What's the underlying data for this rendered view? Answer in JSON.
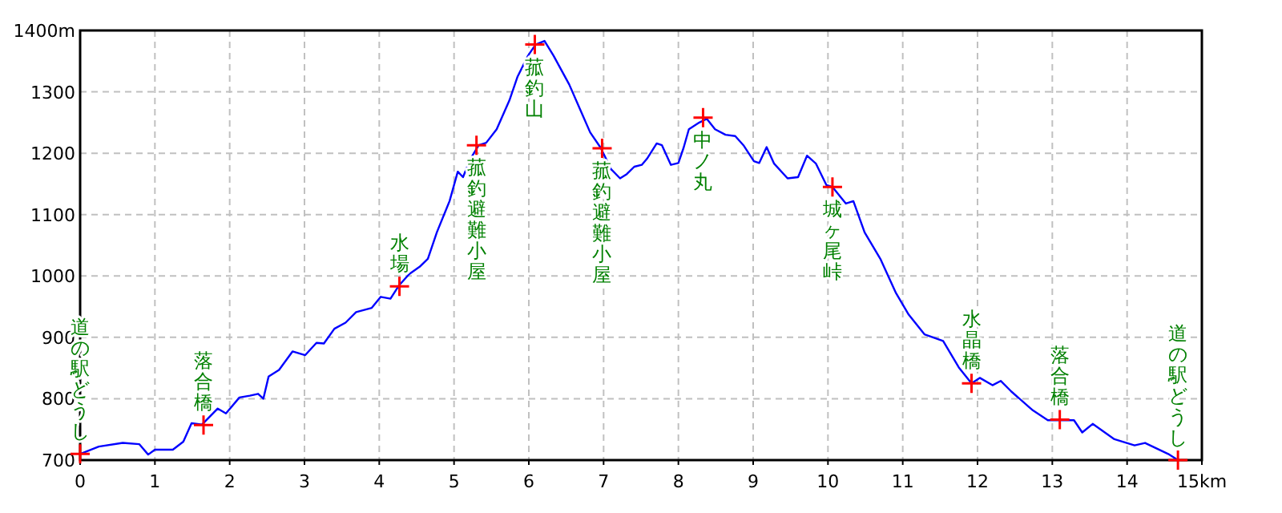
{
  "chart_data": {
    "type": "line",
    "xlim": [
      0,
      15
    ],
    "ylim": [
      700,
      1400
    ],
    "xticks": [
      0,
      1,
      2,
      3,
      4,
      5,
      6,
      7,
      8,
      9,
      10,
      11,
      12,
      13,
      14,
      {
        "value": 15,
        "label": "15km"
      }
    ],
    "yticks": [
      700,
      800,
      900,
      1000,
      1100,
      1200,
      1300,
      {
        "value": 1400,
        "label": "1400m"
      }
    ],
    "grid": true,
    "series": [
      {
        "type": "line",
        "color": "#0000ff",
        "x": [
          0,
          0.25,
          0.57,
          0.79,
          0.91,
          1.0,
          1.24,
          1.38,
          1.49,
          1.63,
          1.84,
          1.95,
          2.13,
          2.27,
          2.38,
          2.45,
          2.52,
          2.66,
          2.84,
          3.01,
          3.16,
          3.26,
          3.4,
          3.55,
          3.69,
          3.9,
          4.02,
          4.15,
          4.26,
          4.4,
          4.54,
          4.65,
          4.77,
          4.94,
          5.05,
          5.12,
          5.22,
          5.33,
          5.43,
          5.57,
          5.74,
          5.85,
          5.99,
          6.09,
          6.21,
          6.33,
          6.54,
          6.68,
          6.82,
          6.96,
          7.1,
          7.22,
          7.31,
          7.41,
          7.51,
          7.58,
          7.71,
          7.78,
          7.9,
          8.0,
          8.07,
          8.14,
          8.28,
          8.38,
          8.49,
          8.63,
          8.76,
          8.87,
          9.01,
          9.08,
          9.18,
          9.28,
          9.46,
          9.6,
          9.72,
          9.84,
          9.98,
          10.06,
          10.24,
          10.34,
          10.49,
          10.7,
          10.91,
          11.08,
          11.29,
          11.54,
          11.75,
          11.92,
          12.03,
          12.2,
          12.31,
          12.45,
          12.73,
          12.94,
          13.29,
          13.4,
          13.54,
          13.83,
          14.1,
          14.24,
          14.55,
          14.68
        ],
        "values": [
          710,
          722,
          728,
          726,
          709,
          717,
          717,
          730,
          760,
          758,
          784,
          776,
          802,
          805,
          808,
          800,
          836,
          847,
          877,
          871,
          891,
          890,
          914,
          924,
          941,
          948,
          966,
          963,
          984,
          1003,
          1015,
          1028,
          1071,
          1122,
          1170,
          1161,
          1191,
          1213,
          1217,
          1239,
          1286,
          1325,
          1359,
          1377,
          1383,
          1359,
          1312,
          1273,
          1234,
          1209,
          1174,
          1159,
          1166,
          1178,
          1181,
          1191,
          1216,
          1213,
          1181,
          1184,
          1209,
          1239,
          1250,
          1256,
          1239,
          1230,
          1228,
          1213,
          1187,
          1184,
          1210,
          1183,
          1159,
          1161,
          1196,
          1183,
          1148,
          1145,
          1118,
          1122,
          1071,
          1028,
          972,
          937,
          905,
          894,
          851,
          825,
          834,
          822,
          829,
          812,
          782,
          765,
          765,
          745,
          759,
          734,
          724,
          728,
          710,
          700
        ]
      },
      {
        "type": "scatter",
        "marker": "cross",
        "color": "#ff0000",
        "x": [
          0,
          1.65,
          4.27,
          5.3,
          6.08,
          6.98,
          8.33,
          10.06,
          11.92,
          13.1,
          14.68
        ],
        "values": [
          710,
          757,
          983,
          1213,
          1377,
          1208,
          1258,
          1145,
          825,
          766,
          700
        ]
      }
    ],
    "annotations": [
      {
        "text": "道の駅どうし",
        "x": 0,
        "y": 710
      },
      {
        "text": "落合橋",
        "x": 1.65,
        "y": 757
      },
      {
        "text": "水場",
        "x": 4.27,
        "y": 983
      },
      {
        "text": "菰釣避難小屋",
        "x": 5.3,
        "y": 1213
      },
      {
        "text": "菰釣山",
        "x": 6.08,
        "y": 1377
      },
      {
        "text": "菰釣避難小屋",
        "x": 6.98,
        "y": 1208
      },
      {
        "text": "中ノ丸",
        "x": 8.33,
        "y": 1258
      },
      {
        "text": "城ヶ尾峠",
        "x": 10.06,
        "y": 1145
      },
      {
        "text": "水晶橋",
        "x": 11.92,
        "y": 825
      },
      {
        "text": "落合橋",
        "x": 13.1,
        "y": 766
      },
      {
        "text": "道の駅どうし",
        "x": 14.68,
        "y": 700
      }
    ]
  }
}
